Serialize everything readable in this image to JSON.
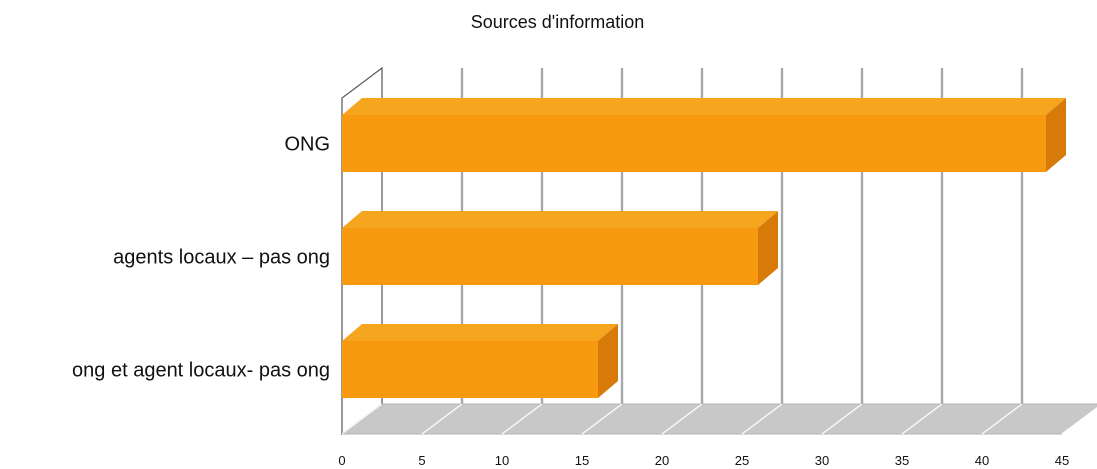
{
  "chart_data": {
    "type": "bar",
    "orientation": "horizontal",
    "style": "3d",
    "title": "Sources d'information",
    "xlabel": "",
    "ylabel": "",
    "categories": [
      "ONG",
      "agents locaux – pas ong",
      "ong et agent locaux- pas ong"
    ],
    "values": [
      44,
      26,
      16
    ],
    "xlim": [
      0,
      45
    ],
    "xticks": [
      0,
      5,
      10,
      15,
      20,
      25,
      30,
      35,
      40,
      45
    ],
    "grid": true,
    "legend": "none"
  },
  "colors": {
    "bar_front": "#f79a10",
    "bar_top": "#f6a51e",
    "bar_side": "#d77a08",
    "grid": "#a8a8a8",
    "floor": "#c8c8c8",
    "axis": "#555555"
  }
}
